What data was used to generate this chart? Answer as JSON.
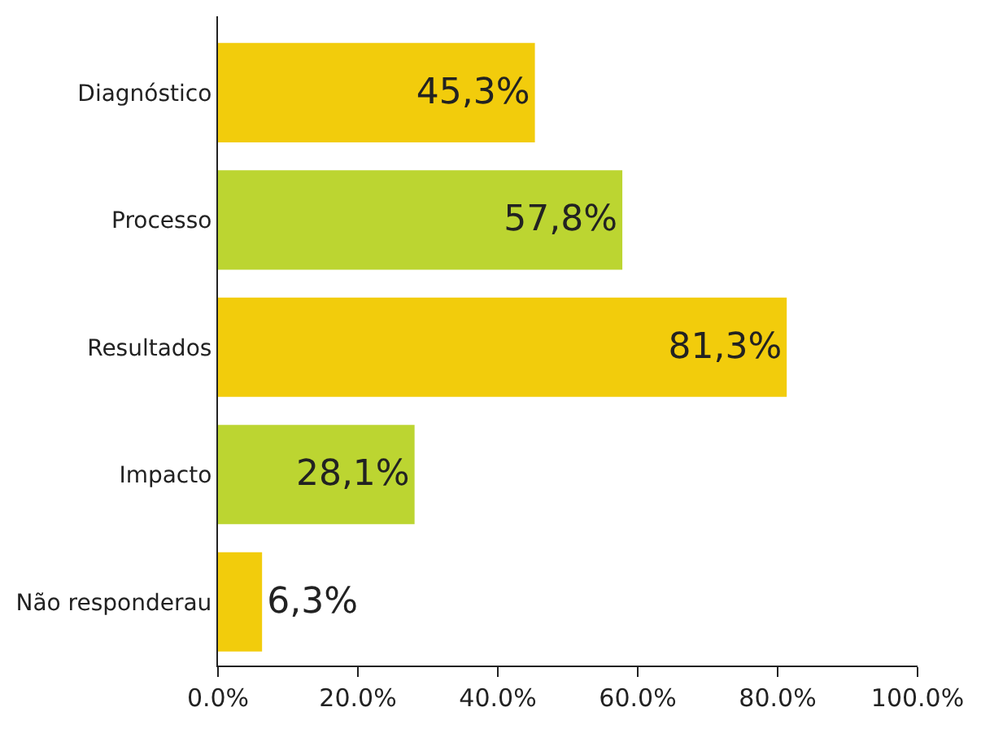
{
  "chart_data": {
    "type": "bar",
    "orientation": "horizontal",
    "categories": [
      "Diagnóstico",
      "Processo",
      "Resultados",
      "Impacto",
      "Não responderau"
    ],
    "values": [
      45.3,
      57.8,
      81.3,
      28.1,
      6.3
    ],
    "colors": [
      "#f2cc0c",
      "#bcd531",
      "#f2cc0c",
      "#bcd531",
      "#f2cc0c"
    ],
    "value_labels": [
      "45,3%",
      "57,8%",
      "81,3%",
      "28,1%",
      "6,3%"
    ],
    "xlim": [
      0,
      100
    ],
    "xticks": [
      {
        "value": 0,
        "label": "0.0%"
      },
      {
        "value": 20,
        "label": "20.0%"
      },
      {
        "value": 40,
        "label": "40.0%"
      },
      {
        "value": 60,
        "label": "60.0%"
      },
      {
        "value": 80,
        "label": "80.0%"
      },
      {
        "value": 100,
        "label": "100.0%"
      }
    ],
    "legend": false
  }
}
